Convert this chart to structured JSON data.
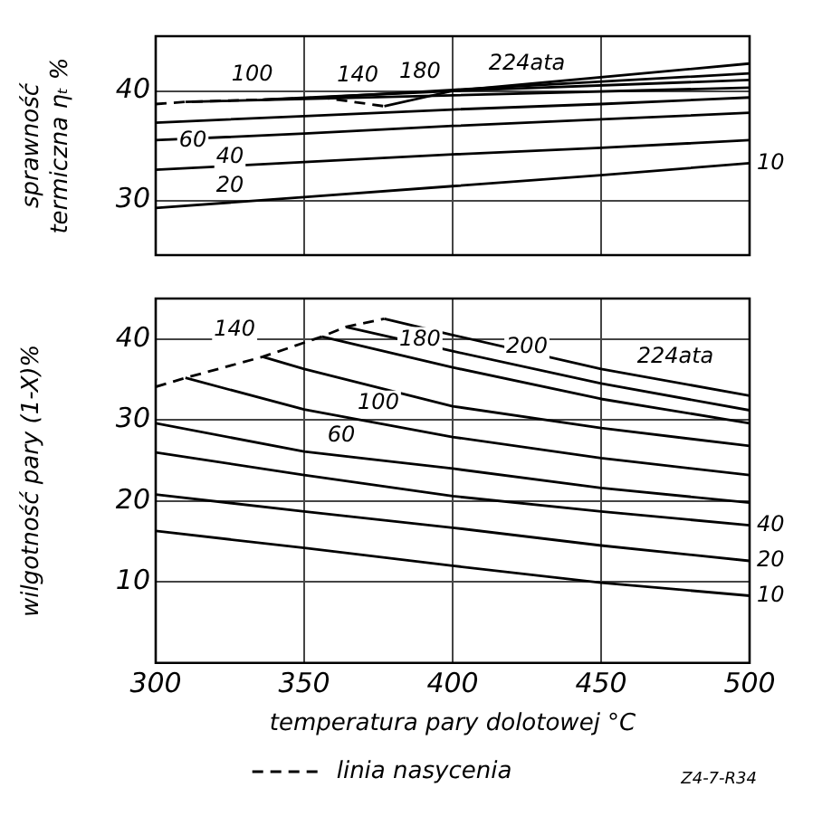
{
  "chart_data": [
    {
      "type": "line",
      "ylabel": "sprawność termiczna ηₜ %",
      "xlim": [
        300,
        500
      ],
      "xticks": [
        300,
        350,
        400,
        450,
        500
      ],
      "ylim": [
        25,
        45
      ],
      "yticks": [
        30,
        40
      ],
      "tick_labels": "y",
      "grid": true,
      "marker": "none",
      "line_style": "solid",
      "series": [
        {
          "name": "10",
          "color": "#000000",
          "x": [
            300,
            350,
            400,
            450,
            500
          ],
          "values": [
            29.3,
            30.3,
            31.3,
            32.3,
            33.4
          ]
        },
        {
          "name": "20",
          "color": "#000000",
          "x": [
            300,
            350,
            400,
            450,
            500
          ],
          "values": [
            32.8,
            33.5,
            34.2,
            34.8,
            35.5
          ]
        },
        {
          "name": "40",
          "color": "#000000",
          "x": [
            300,
            350,
            400,
            450,
            500
          ],
          "values": [
            35.5,
            36.1,
            36.8,
            37.4,
            38.0
          ]
        },
        {
          "name": "60",
          "color": "#000000",
          "x": [
            300,
            350,
            400,
            450,
            500
          ],
          "values": [
            37.1,
            37.7,
            38.3,
            38.8,
            39.4
          ]
        },
        {
          "name": "100",
          "color": "#000000",
          "x": [
            310,
            400,
            500
          ],
          "values": [
            39.0,
            39.6,
            40.3
          ]
        },
        {
          "name": "140",
          "color": "#000000",
          "x": [
            336,
            400,
            500
          ],
          "values": [
            39.2,
            40.0,
            41.0
          ]
        },
        {
          "name": "180",
          "color": "#000000",
          "x": [
            356,
            400,
            500
          ],
          "values": [
            39.4,
            40.1,
            41.6
          ]
        },
        {
          "name": "224ata",
          "color": "#000000",
          "x": [
            377,
            400,
            500
          ],
          "values": [
            38.6,
            40.0,
            42.5
          ]
        },
        {
          "color": "#000000",
          "line_style": "dashed",
          "x": [
            300,
            310,
            336,
            356,
            377
          ],
          "values": [
            38.8,
            39.0,
            39.2,
            39.4,
            38.6
          ]
        }
      ]
    },
    {
      "type": "line",
      "xlabel": "temperatura pary dolotowej °C",
      "ylabel": "wilgotność pary (1-X)%",
      "xlim": [
        300,
        500
      ],
      "xticks": [
        300,
        350,
        400,
        450,
        500
      ],
      "ylim": [
        0,
        45
      ],
      "yticks": [
        10,
        20,
        30,
        40
      ],
      "grid": true,
      "marker": "none",
      "line_style": "solid",
      "legend": "bottom",
      "annotations": [
        "Z4-7-R34"
      ],
      "series": [
        {
          "name": "10",
          "color": "#000000",
          "x": [
            300,
            350,
            400,
            450,
            500
          ],
          "values": [
            16.3,
            14.2,
            12.0,
            9.9,
            8.3
          ]
        },
        {
          "name": "20",
          "color": "#000000",
          "x": [
            300,
            350,
            400,
            450,
            500
          ],
          "values": [
            20.8,
            18.7,
            16.7,
            14.5,
            12.6
          ]
        },
        {
          "name": "40",
          "color": "#000000",
          "x": [
            300,
            350,
            400,
            450,
            500
          ],
          "values": [
            26.0,
            23.2,
            20.6,
            18.7,
            17.0
          ]
        },
        {
          "name": "60",
          "color": "#000000",
          "x": [
            300,
            350,
            400,
            450,
            500
          ],
          "values": [
            29.6,
            26.1,
            24.0,
            21.6,
            19.8
          ]
        },
        {
          "name": "100",
          "color": "#000000",
          "x": [
            310,
            350,
            400,
            450,
            500
          ],
          "values": [
            35.2,
            31.3,
            27.9,
            25.3,
            23.2
          ]
        },
        {
          "name": "140",
          "color": "#000000",
          "x": [
            336,
            350,
            400,
            450,
            500
          ],
          "values": [
            37.8,
            36.3,
            31.7,
            29.0,
            26.8
          ]
        },
        {
          "name": "180",
          "color": "#000000",
          "x": [
            356,
            400,
            450,
            500
          ],
          "values": [
            40.3,
            36.5,
            32.6,
            29.6
          ]
        },
        {
          "name": "200",
          "color": "#000000",
          "x": [
            364,
            400,
            450,
            500
          ],
          "values": [
            41.5,
            38.5,
            34.5,
            31.2
          ]
        },
        {
          "name": "224ata",
          "color": "#000000",
          "x": [
            377,
            400,
            450,
            500
          ],
          "values": [
            42.5,
            40.5,
            36.3,
            33.0
          ]
        },
        {
          "name": "linia nasycenia",
          "color": "#000000",
          "line_style": "dashed",
          "x": [
            300,
            310,
            336,
            356,
            364,
            377
          ],
          "values": [
            34.1,
            35.2,
            37.8,
            40.3,
            41.5,
            42.5
          ]
        }
      ]
    }
  ]
}
